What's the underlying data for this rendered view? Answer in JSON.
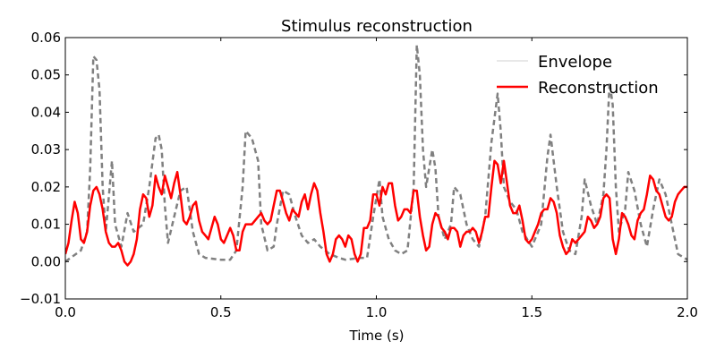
{
  "chart_data": {
    "type": "line",
    "title": "Stimulus reconstruction",
    "xlabel": "Time (s)",
    "ylabel": "",
    "xlim": [
      0.0,
      2.0
    ],
    "ylim": [
      -0.01,
      0.06
    ],
    "xticks": [
      "0.0",
      "0.5",
      "1.0",
      "1.5",
      "2.0"
    ],
    "yticks": [
      "−0.01",
      "0.00",
      "0.01",
      "0.02",
      "0.03",
      "0.04",
      "0.05",
      "0.06"
    ],
    "grid": false,
    "legend_position": "top-right",
    "series": [
      {
        "name": "Envelope",
        "color": "#808080",
        "style": "dashed",
        "points": [
          [
            0.0,
            0.0
          ],
          [
            0.05,
            0.003
          ],
          [
            0.07,
            0.008
          ],
          [
            0.08,
            0.025
          ],
          [
            0.09,
            0.055
          ],
          [
            0.1,
            0.054
          ],
          [
            0.11,
            0.046
          ],
          [
            0.12,
            0.02
          ],
          [
            0.13,
            0.008
          ],
          [
            0.15,
            0.027
          ],
          [
            0.16,
            0.01
          ],
          [
            0.18,
            0.004
          ],
          [
            0.2,
            0.013
          ],
          [
            0.22,
            0.008
          ],
          [
            0.25,
            0.01
          ],
          [
            0.27,
            0.02
          ],
          [
            0.29,
            0.033
          ],
          [
            0.3,
            0.034
          ],
          [
            0.31,
            0.03
          ],
          [
            0.32,
            0.015
          ],
          [
            0.33,
            0.005
          ],
          [
            0.35,
            0.012
          ],
          [
            0.37,
            0.019
          ],
          [
            0.39,
            0.02
          ],
          [
            0.41,
            0.008
          ],
          [
            0.43,
            0.002
          ],
          [
            0.45,
            0.001
          ],
          [
            0.5,
            0.0005
          ],
          [
            0.53,
            0.0005
          ],
          [
            0.55,
            0.003
          ],
          [
            0.57,
            0.02
          ],
          [
            0.58,
            0.035
          ],
          [
            0.6,
            0.033
          ],
          [
            0.62,
            0.027
          ],
          [
            0.63,
            0.01
          ],
          [
            0.65,
            0.003
          ],
          [
            0.67,
            0.004
          ],
          [
            0.68,
            0.01
          ],
          [
            0.7,
            0.019
          ],
          [
            0.72,
            0.018
          ],
          [
            0.74,
            0.012
          ],
          [
            0.76,
            0.007
          ],
          [
            0.78,
            0.005
          ],
          [
            0.8,
            0.006
          ],
          [
            0.82,
            0.004
          ],
          [
            0.85,
            0.002
          ],
          [
            0.88,
            0.001
          ],
          [
            0.9,
            0.0005
          ],
          [
            0.95,
            0.001
          ],
          [
            0.97,
            0.001
          ],
          [
            0.99,
            0.012
          ],
          [
            1.01,
            0.022
          ],
          [
            1.02,
            0.012
          ],
          [
            1.04,
            0.006
          ],
          [
            1.06,
            0.003
          ],
          [
            1.08,
            0.002
          ],
          [
            1.1,
            0.003
          ],
          [
            1.12,
            0.02
          ],
          [
            1.13,
            0.058
          ],
          [
            1.14,
            0.05
          ],
          [
            1.15,
            0.03
          ],
          [
            1.16,
            0.02
          ],
          [
            1.18,
            0.03
          ],
          [
            1.19,
            0.025
          ],
          [
            1.2,
            0.012
          ],
          [
            1.22,
            0.006
          ],
          [
            1.24,
            0.01
          ],
          [
            1.25,
            0.02
          ],
          [
            1.27,
            0.018
          ],
          [
            1.29,
            0.01
          ],
          [
            1.31,
            0.006
          ],
          [
            1.33,
            0.004
          ],
          [
            1.35,
            0.012
          ],
          [
            1.37,
            0.032
          ],
          [
            1.39,
            0.045
          ],
          [
            1.4,
            0.035
          ],
          [
            1.41,
            0.02
          ],
          [
            1.43,
            0.016
          ],
          [
            1.45,
            0.014
          ],
          [
            1.47,
            0.008
          ],
          [
            1.5,
            0.004
          ],
          [
            1.53,
            0.01
          ],
          [
            1.55,
            0.028
          ],
          [
            1.56,
            0.034
          ],
          [
            1.58,
            0.02
          ],
          [
            1.6,
            0.008
          ],
          [
            1.62,
            0.003
          ],
          [
            1.64,
            0.002
          ],
          [
            1.66,
            0.012
          ],
          [
            1.67,
            0.022
          ],
          [
            1.69,
            0.015
          ],
          [
            1.71,
            0.01
          ],
          [
            1.73,
            0.018
          ],
          [
            1.74,
            0.03
          ],
          [
            1.75,
            0.048
          ],
          [
            1.76,
            0.042
          ],
          [
            1.77,
            0.02
          ],
          [
            1.78,
            0.008
          ],
          [
            1.8,
            0.014
          ],
          [
            1.81,
            0.024
          ],
          [
            1.83,
            0.019
          ],
          [
            1.85,
            0.01
          ],
          [
            1.87,
            0.004
          ],
          [
            1.89,
            0.014
          ],
          [
            1.91,
            0.022
          ],
          [
            1.93,
            0.018
          ],
          [
            1.95,
            0.01
          ],
          [
            1.97,
            0.002
          ],
          [
            2.0,
            0.0005
          ]
        ]
      },
      {
        "name": "Reconstruction",
        "color": "#ff0000",
        "style": "solid",
        "points": [
          [
            0.0,
            0.002
          ],
          [
            0.01,
            0.005
          ],
          [
            0.02,
            0.011
          ],
          [
            0.03,
            0.016
          ],
          [
            0.04,
            0.013
          ],
          [
            0.05,
            0.006
          ],
          [
            0.06,
            0.005
          ],
          [
            0.07,
            0.008
          ],
          [
            0.08,
            0.015
          ],
          [
            0.09,
            0.019
          ],
          [
            0.1,
            0.02
          ],
          [
            0.11,
            0.018
          ],
          [
            0.12,
            0.014
          ],
          [
            0.13,
            0.008
          ],
          [
            0.14,
            0.005
          ],
          [
            0.15,
            0.004
          ],
          [
            0.16,
            0.004
          ],
          [
            0.17,
            0.005
          ],
          [
            0.18,
            0.003
          ],
          [
            0.19,
            0.0
          ],
          [
            0.2,
            -0.001
          ],
          [
            0.21,
            0.0
          ],
          [
            0.22,
            0.002
          ],
          [
            0.23,
            0.006
          ],
          [
            0.24,
            0.014
          ],
          [
            0.25,
            0.018
          ],
          [
            0.26,
            0.017
          ],
          [
            0.27,
            0.012
          ],
          [
            0.28,
            0.015
          ],
          [
            0.29,
            0.023
          ],
          [
            0.3,
            0.02
          ],
          [
            0.31,
            0.018
          ],
          [
            0.32,
            0.023
          ],
          [
            0.33,
            0.02
          ],
          [
            0.34,
            0.017
          ],
          [
            0.35,
            0.021
          ],
          [
            0.36,
            0.024
          ],
          [
            0.37,
            0.018
          ],
          [
            0.38,
            0.011
          ],
          [
            0.39,
            0.01
          ],
          [
            0.4,
            0.012
          ],
          [
            0.41,
            0.015
          ],
          [
            0.42,
            0.016
          ],
          [
            0.43,
            0.011
          ],
          [
            0.44,
            0.008
          ],
          [
            0.45,
            0.007
          ],
          [
            0.46,
            0.006
          ],
          [
            0.47,
            0.009
          ],
          [
            0.48,
            0.012
          ],
          [
            0.49,
            0.01
          ],
          [
            0.5,
            0.006
          ],
          [
            0.51,
            0.005
          ],
          [
            0.52,
            0.007
          ],
          [
            0.53,
            0.009
          ],
          [
            0.54,
            0.007
          ],
          [
            0.55,
            0.003
          ],
          [
            0.56,
            0.003
          ],
          [
            0.57,
            0.008
          ],
          [
            0.58,
            0.01
          ],
          [
            0.6,
            0.01
          ],
          [
            0.62,
            0.012
          ],
          [
            0.63,
            0.013
          ],
          [
            0.64,
            0.011
          ],
          [
            0.65,
            0.01
          ],
          [
            0.66,
            0.011
          ],
          [
            0.67,
            0.015
          ],
          [
            0.68,
            0.019
          ],
          [
            0.69,
            0.019
          ],
          [
            0.7,
            0.016
          ],
          [
            0.71,
            0.013
          ],
          [
            0.72,
            0.011
          ],
          [
            0.73,
            0.014
          ],
          [
            0.74,
            0.013
          ],
          [
            0.75,
            0.012
          ],
          [
            0.76,
            0.016
          ],
          [
            0.77,
            0.018
          ],
          [
            0.78,
            0.014
          ],
          [
            0.79,
            0.018
          ],
          [
            0.8,
            0.021
          ],
          [
            0.81,
            0.019
          ],
          [
            0.82,
            0.013
          ],
          [
            0.83,
            0.008
          ],
          [
            0.84,
            0.002
          ],
          [
            0.85,
            0.0
          ],
          [
            0.86,
            0.002
          ],
          [
            0.87,
            0.006
          ],
          [
            0.88,
            0.007
          ],
          [
            0.89,
            0.006
          ],
          [
            0.9,
            0.004
          ],
          [
            0.91,
            0.007
          ],
          [
            0.92,
            0.006
          ],
          [
            0.93,
            0.002
          ],
          [
            0.94,
            0.0
          ],
          [
            0.95,
            0.002
          ],
          [
            0.96,
            0.009
          ],
          [
            0.97,
            0.009
          ],
          [
            0.98,
            0.011
          ],
          [
            0.99,
            0.018
          ],
          [
            1.0,
            0.018
          ],
          [
            1.01,
            0.015
          ],
          [
            1.02,
            0.02
          ],
          [
            1.03,
            0.018
          ],
          [
            1.04,
            0.021
          ],
          [
            1.05,
            0.021
          ],
          [
            1.06,
            0.015
          ],
          [
            1.07,
            0.011
          ],
          [
            1.08,
            0.012
          ],
          [
            1.09,
            0.014
          ],
          [
            1.1,
            0.014
          ],
          [
            1.11,
            0.013
          ],
          [
            1.12,
            0.019
          ],
          [
            1.13,
            0.019
          ],
          [
            1.14,
            0.012
          ],
          [
            1.15,
            0.007
          ],
          [
            1.16,
            0.003
          ],
          [
            1.17,
            0.004
          ],
          [
            1.18,
            0.01
          ],
          [
            1.19,
            0.013
          ],
          [
            1.2,
            0.012
          ],
          [
            1.21,
            0.009
          ],
          [
            1.22,
            0.008
          ],
          [
            1.23,
            0.006
          ],
          [
            1.24,
            0.009
          ],
          [
            1.25,
            0.009
          ],
          [
            1.26,
            0.008
          ],
          [
            1.27,
            0.004
          ],
          [
            1.28,
            0.007
          ],
          [
            1.29,
            0.008
          ],
          [
            1.3,
            0.008
          ],
          [
            1.31,
            0.009
          ],
          [
            1.32,
            0.008
          ],
          [
            1.33,
            0.005
          ],
          [
            1.34,
            0.008
          ],
          [
            1.35,
            0.012
          ],
          [
            1.36,
            0.012
          ],
          [
            1.37,
            0.02
          ],
          [
            1.38,
            0.027
          ],
          [
            1.39,
            0.026
          ],
          [
            1.4,
            0.021
          ],
          [
            1.41,
            0.027
          ],
          [
            1.42,
            0.021
          ],
          [
            1.43,
            0.015
          ],
          [
            1.44,
            0.013
          ],
          [
            1.45,
            0.013
          ],
          [
            1.46,
            0.015
          ],
          [
            1.47,
            0.011
          ],
          [
            1.48,
            0.006
          ],
          [
            1.49,
            0.005
          ],
          [
            1.5,
            0.006
          ],
          [
            1.51,
            0.008
          ],
          [
            1.52,
            0.01
          ],
          [
            1.53,
            0.013
          ],
          [
            1.54,
            0.014
          ],
          [
            1.55,
            0.014
          ],
          [
            1.56,
            0.017
          ],
          [
            1.57,
            0.016
          ],
          [
            1.58,
            0.013
          ],
          [
            1.59,
            0.007
          ],
          [
            1.6,
            0.004
          ],
          [
            1.61,
            0.002
          ],
          [
            1.62,
            0.003
          ],
          [
            1.63,
            0.006
          ],
          [
            1.64,
            0.005
          ],
          [
            1.65,
            0.006
          ],
          [
            1.66,
            0.007
          ],
          [
            1.67,
            0.008
          ],
          [
            1.68,
            0.012
          ],
          [
            1.69,
            0.011
          ],
          [
            1.7,
            0.009
          ],
          [
            1.71,
            0.01
          ],
          [
            1.72,
            0.012
          ],
          [
            1.73,
            0.017
          ],
          [
            1.74,
            0.018
          ],
          [
            1.75,
            0.017
          ],
          [
            1.76,
            0.006
          ],
          [
            1.77,
            0.002
          ],
          [
            1.78,
            0.006
          ],
          [
            1.79,
            0.013
          ],
          [
            1.8,
            0.012
          ],
          [
            1.81,
            0.01
          ],
          [
            1.82,
            0.007
          ],
          [
            1.83,
            0.006
          ],
          [
            1.84,
            0.011
          ],
          [
            1.85,
            0.013
          ],
          [
            1.86,
            0.014
          ],
          [
            1.87,
            0.018
          ],
          [
            1.88,
            0.023
          ],
          [
            1.89,
            0.022
          ],
          [
            1.9,
            0.019
          ],
          [
            1.91,
            0.018
          ],
          [
            1.92,
            0.015
          ],
          [
            1.93,
            0.012
          ],
          [
            1.94,
            0.011
          ],
          [
            1.95,
            0.012
          ],
          [
            1.96,
            0.016
          ],
          [
            1.97,
            0.018
          ],
          [
            1.98,
            0.019
          ],
          [
            1.99,
            0.02
          ],
          [
            2.0,
            0.02
          ]
        ]
      }
    ]
  }
}
